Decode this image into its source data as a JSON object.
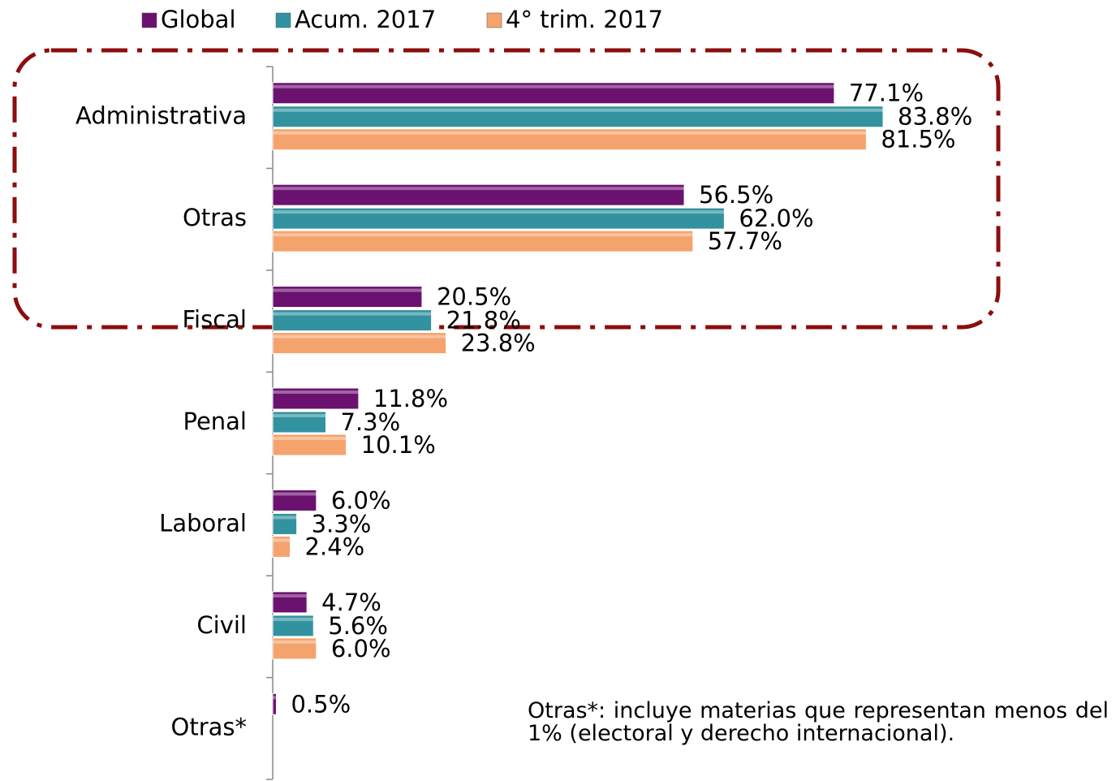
{
  "chart_data": {
    "type": "hbar",
    "categories": [
      "Administrativa",
      "Otras",
      "Fiscal",
      "Penal",
      "Laboral",
      "Civil",
      "Otras*"
    ],
    "series": [
      {
        "name": "Global",
        "color": "#6b1170",
        "values": [
          77.1,
          56.5,
          20.5,
          11.8,
          6.0,
          4.7,
          0.5
        ],
        "value_labels": [
          "77.1%",
          "56.5%",
          "20.5%",
          "11.8%",
          "6.0%",
          "4.7%",
          "0.5%"
        ]
      },
      {
        "name": "Acum. 2017",
        "color": "#33929f",
        "values": [
          83.8,
          62.0,
          21.8,
          7.3,
          3.3,
          5.6,
          null
        ],
        "value_labels": [
          "83.8%",
          "62.0%",
          "21.8%",
          "7.3%",
          "3.3%",
          "5.6%",
          null
        ]
      },
      {
        "name": "4° trim. 2017",
        "color": "#f5a36c",
        "values": [
          81.5,
          57.7,
          23.8,
          10.1,
          2.4,
          6.0,
          null
        ],
        "value_labels": [
          "81.5%",
          "57.7%",
          "23.8%",
          "10.1%",
          "2.4%",
          "6.0%",
          null
        ]
      }
    ],
    "xlim": [
      0,
      115
    ],
    "note": "Otras*: incluye materias que representan menos del 1% (electoral y derecho internacional)."
  }
}
